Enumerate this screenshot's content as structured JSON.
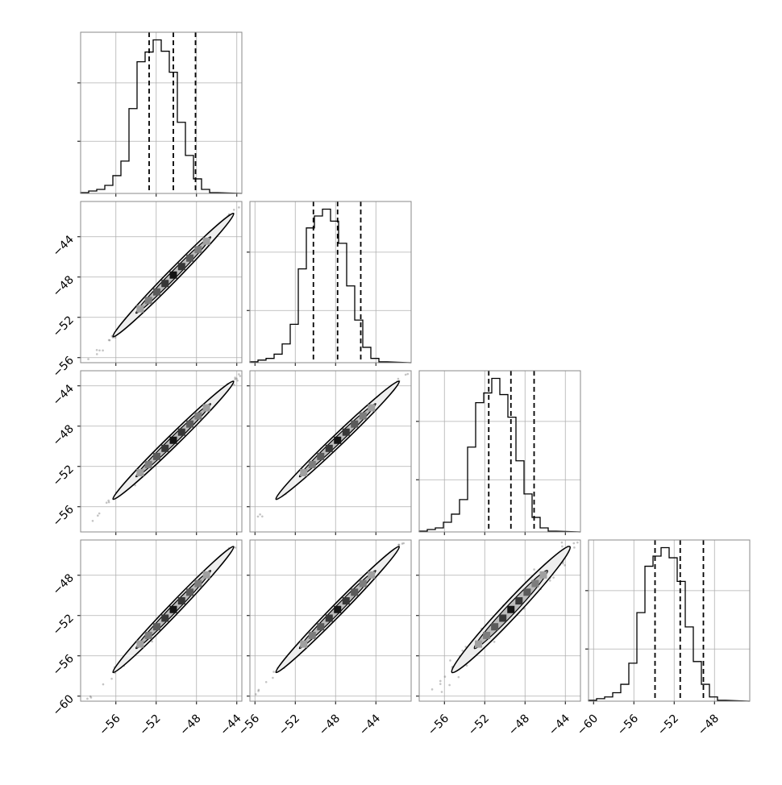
{
  "chart_data": {
    "type": "corner",
    "title": "",
    "grid": true,
    "n_params": 4,
    "param_labels": [
      "",
      "",
      "",
      ""
    ],
    "quantile_lines": "0.16, 0.50, 0.84 (dashed)",
    "ranges": [
      [
        -59.5,
        -43.5
      ],
      [
        -56.5,
        -40.5
      ],
      [
        -58.5,
        -42.5
      ],
      [
        -60.5,
        -44.5
      ]
    ],
    "ticks": [
      [
        -56,
        -52,
        -48,
        -44
      ],
      [
        -56,
        -52,
        -48,
        -44
      ],
      [
        -56,
        -52,
        -48,
        -44
      ],
      [
        -60,
        -56,
        -52,
        -48
      ]
    ],
    "x_tick_labels": [
      [
        "−56",
        "−52",
        "−48",
        "−44"
      ],
      [
        "−56",
        "−52",
        "−48",
        "−44"
      ],
      [
        "−56",
        "−52",
        "−48",
        "−44"
      ],
      [
        "−60",
        "−56",
        "−52",
        "−48"
      ]
    ],
    "y_tick_labels": [
      [
        "−44",
        "−48",
        "−52",
        "−56"
      ],
      [
        "−44",
        "−48",
        "−52",
        "−56"
      ],
      [
        "−48",
        "−52",
        "−56",
        "−60"
      ]
    ],
    "medians": [
      -50.3,
      -47.8,
      -49.4,
      -51.4
    ],
    "q16": [
      -52.7,
      -50.2,
      -51.6,
      -53.9
    ],
    "q84": [
      -48.1,
      -45.5,
      -47.1,
      -49.1
    ],
    "histograms": [
      {
        "edges_start": -59.5,
        "bin_width": 0.8,
        "counts": [
          1,
          3,
          5,
          10,
          22,
          40,
          105,
          163,
          175,
          190,
          176,
          150,
          88,
          47,
          18,
          5,
          1
        ]
      },
      {
        "edges_start": -56.5,
        "bin_width": 0.8,
        "counts": [
          1,
          3,
          5,
          10,
          22,
          45,
          110,
          158,
          172,
          180,
          166,
          140,
          90,
          50,
          18,
          5,
          1
        ]
      },
      {
        "edges_start": -58.5,
        "bin_width": 0.8,
        "counts": [
          1,
          3,
          5,
          12,
          22,
          40,
          105,
          160,
          172,
          190,
          170,
          142,
          88,
          47,
          18,
          5,
          1
        ]
      },
      {
        "edges_start": -60.5,
        "bin_width": 0.8,
        "counts": [
          1,
          3,
          5,
          10,
          20,
          45,
          105,
          160,
          172,
          182,
          170,
          142,
          88,
          47,
          20,
          5,
          1
        ]
      }
    ]
  }
}
